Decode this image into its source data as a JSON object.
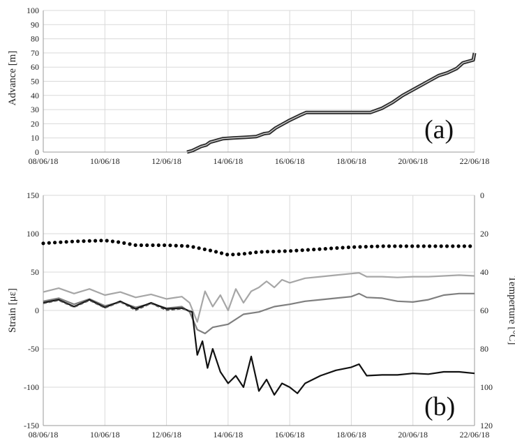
{
  "chart_data": [
    {
      "type": "line",
      "panel_label": "(a)",
      "ylabel": "Advance [m]",
      "xlim": [
        "2018-06-08",
        "2018-06-22"
      ],
      "ylim": [
        0,
        100
      ],
      "x_ticks": [
        "08/06/18",
        "10/06/18",
        "12/06/18",
        "14/06/18",
        "16/06/18",
        "18/06/18",
        "20/06/18",
        "22/06/18"
      ],
      "y_ticks": [
        "0",
        "10",
        "20",
        "30",
        "40",
        "50",
        "60",
        "70",
        "80",
        "90",
        "100"
      ],
      "grid": true,
      "colors": {
        "series": "#2b2b2b",
        "grid": "#d9d9d9"
      },
      "series": [
        {
          "x": [
            "2018-06-12 16:00",
            "2018-06-12 20:00",
            "2018-06-13 03:00",
            "2018-06-13 07:00",
            "2018-06-13 10:00",
            "2018-06-13 14:00",
            "2018-06-13 20:00",
            "2018-06-14 04:00",
            "2018-06-14 14:00",
            "2018-06-14 22:00",
            "2018-06-15 04:00",
            "2018-06-15 08:00",
            "2018-06-15 13:00",
            "2018-06-15 23:00",
            "2018-06-16 08:00",
            "2018-06-16 13:00",
            "2018-06-17 12:00",
            "2018-06-18 10:00",
            "2018-06-18 15:00",
            "2018-06-19 00:00",
            "2018-06-19 08:00",
            "2018-06-19 16:00",
            "2018-06-20 00:00",
            "2018-06-20 06:00",
            "2018-06-20 12:00",
            "2018-06-20 20:00",
            "2018-06-21 03:00",
            "2018-06-21 10:00",
            "2018-06-21 15:00",
            "2018-06-21 23:00",
            "2018-06-22 00:00"
          ],
          "y": [
            0,
            1,
            4,
            5,
            7,
            8,
            9.5,
            10,
            10.5,
            11,
            13,
            13.5,
            17,
            22,
            26,
            28,
            28,
            28,
            28,
            31,
            35,
            40,
            44,
            47,
            50,
            54,
            56,
            59,
            63,
            65,
            70
          ]
        }
      ]
    },
    {
      "type": "line",
      "panel_label": "(b)",
      "ylabel": "Strain [με]",
      "y2label": "Temperture [°C]",
      "xlim": [
        "2018-06-08",
        "2018-06-22"
      ],
      "ylim": [
        -150,
        150
      ],
      "y2lim": [
        0,
        120
      ],
      "y2_inverted": true,
      "x_ticks": [
        "08/06/18",
        "10/06/18",
        "12/06/18",
        "14/06/18",
        "16/06/18",
        "18/06/18",
        "20/06/18",
        "22/06/18"
      ],
      "y_ticks": [
        "-150",
        "-100",
        "-50",
        "0",
        "50",
        "100",
        "150"
      ],
      "y2_ticks": [
        "0",
        "20",
        "40",
        "60",
        "80",
        "100",
        "120"
      ],
      "grid": true,
      "colors": {
        "light": "#a6a6a6",
        "mid": "#7f7f7f",
        "black": "#111111",
        "temperature": "#000000",
        "grid": "#d9d9d9"
      },
      "series": [
        {
          "style": "light",
          "x": [
            "2018-06-08 00:00",
            "2018-06-08 12:00",
            "2018-06-09 00:00",
            "2018-06-09 12:00",
            "2018-06-10 00:00",
            "2018-06-10 12:00",
            "2018-06-11 00:00",
            "2018-06-11 12:00",
            "2018-06-12 00:00",
            "2018-06-12 12:00",
            "2018-06-12 18:00",
            "2018-06-13 00:00",
            "2018-06-13 06:00",
            "2018-06-13 12:00",
            "2018-06-13 18:00",
            "2018-06-14 00:00",
            "2018-06-14 06:00",
            "2018-06-14 12:00",
            "2018-06-14 18:00",
            "2018-06-15 00:00",
            "2018-06-15 06:00",
            "2018-06-15 12:00",
            "2018-06-15 18:00",
            "2018-06-16 00:00",
            "2018-06-16 12:00",
            "2018-06-17 00:00",
            "2018-06-17 12:00",
            "2018-06-18 00:00",
            "2018-06-18 06:00",
            "2018-06-18 12:00",
            "2018-06-19 00:00",
            "2018-06-19 12:00",
            "2018-06-20 00:00",
            "2018-06-20 12:00",
            "2018-06-21 00:00",
            "2018-06-21 12:00",
            "2018-06-22 00:00"
          ],
          "y": [
            24,
            29,
            22,
            28,
            20,
            24,
            17,
            21,
            15,
            18,
            10,
            -15,
            25,
            5,
            20,
            0,
            28,
            10,
            25,
            30,
            38,
            30,
            40,
            36,
            42,
            44,
            46,
            48,
            49,
            44,
            44,
            43,
            44,
            44,
            45,
            46,
            45
          ]
        },
        {
          "style": "mid",
          "x": [
            "2018-06-08 00:00",
            "2018-06-08 12:00",
            "2018-06-09 00:00",
            "2018-06-09 12:00",
            "2018-06-10 00:00",
            "2018-06-10 12:00",
            "2018-06-11 00:00",
            "2018-06-11 12:00",
            "2018-06-12 00:00",
            "2018-06-12 12:00",
            "2018-06-12 18:00",
            "2018-06-13 00:00",
            "2018-06-13 06:00",
            "2018-06-13 12:00",
            "2018-06-14 00:00",
            "2018-06-14 12:00",
            "2018-06-15 00:00",
            "2018-06-15 12:00",
            "2018-06-16 00:00",
            "2018-06-16 12:00",
            "2018-06-17 00:00",
            "2018-06-17 12:00",
            "2018-06-18 00:00",
            "2018-06-18 06:00",
            "2018-06-18 12:00",
            "2018-06-19 00:00",
            "2018-06-19 12:00",
            "2018-06-20 00:00",
            "2018-06-20 12:00",
            "2018-06-21 00:00",
            "2018-06-21 12:00",
            "2018-06-22 00:00"
          ],
          "y": [
            12,
            16,
            8,
            15,
            6,
            11,
            4,
            9,
            3,
            5,
            -2,
            -25,
            -30,
            -22,
            -18,
            -5,
            -2,
            5,
            8,
            12,
            14,
            16,
            18,
            22,
            17,
            16,
            12,
            11,
            14,
            20,
            22,
            22
          ]
        },
        {
          "style": "black",
          "x": [
            "2018-06-08 00:00",
            "2018-06-08 12:00",
            "2018-06-09 00:00",
            "2018-06-09 12:00",
            "2018-06-10 00:00",
            "2018-06-10 12:00",
            "2018-06-11 00:00",
            "2018-06-11 12:00",
            "2018-06-12 00:00",
            "2018-06-12 12:00",
            "2018-06-12 20:00",
            "2018-06-13 00:00",
            "2018-06-13 04:00",
            "2018-06-13 08:00",
            "2018-06-13 12:00",
            "2018-06-13 18:00",
            "2018-06-14 00:00",
            "2018-06-14 06:00",
            "2018-06-14 12:00",
            "2018-06-14 18:00",
            "2018-06-15 00:00",
            "2018-06-15 06:00",
            "2018-06-15 12:00",
            "2018-06-15 18:00",
            "2018-06-16 00:00",
            "2018-06-16 06:00",
            "2018-06-16 12:00",
            "2018-06-17 00:00",
            "2018-06-17 12:00",
            "2018-06-18 00:00",
            "2018-06-18 06:00",
            "2018-06-18 12:00",
            "2018-06-19 00:00",
            "2018-06-19 12:00",
            "2018-06-20 00:00",
            "2018-06-20 12:00",
            "2018-06-21 00:00",
            "2018-06-21 12:00",
            "2018-06-22 00:00"
          ],
          "y": [
            10,
            14,
            5,
            14,
            4,
            12,
            2,
            10,
            2,
            3,
            -2,
            -58,
            -40,
            -75,
            -50,
            -80,
            -95,
            -85,
            -100,
            -60,
            -105,
            -90,
            -110,
            -95,
            -100,
            -108,
            -95,
            -85,
            -78,
            -74,
            -70,
            -85,
            -84,
            -84,
            -82,
            -83,
            -80,
            -80,
            -82
          ]
        },
        {
          "style": "dashed",
          "x": [
            "2018-06-08 00:00",
            "2018-06-08 12:00",
            "2018-06-09 00:00",
            "2018-06-09 12:00",
            "2018-06-10 00:00",
            "2018-06-10 12:00",
            "2018-06-11 00:00",
            "2018-06-11 12:00",
            "2018-06-12 00:00",
            "2018-06-12 12:00",
            "2018-06-12 20:00"
          ],
          "y": [
            9,
            13,
            4,
            13,
            3,
            11,
            0,
            9,
            0,
            2,
            -1
          ]
        },
        {
          "style": "temperature",
          "axis": "y2",
          "x": [
            "2018-06-08 00:00",
            "2018-06-09 00:00",
            "2018-06-10 00:00",
            "2018-06-10 12:00",
            "2018-06-11 00:00",
            "2018-06-12 00:00",
            "2018-06-12 18:00",
            "2018-06-13 12:00",
            "2018-06-14 00:00",
            "2018-06-14 12:00",
            "2018-06-15 00:00",
            "2018-06-16 00:00",
            "2018-06-17 00:00",
            "2018-06-18 00:00",
            "2018-06-19 00:00",
            "2018-06-20 00:00",
            "2018-06-21 00:00",
            "2018-06-22 00:00"
          ],
          "y": [
            25,
            24,
            23.5,
            24.5,
            26,
            26,
            26.5,
            29,
            31,
            30.5,
            29.5,
            29,
            28,
            27,
            26.5,
            26.5,
            26.5,
            26.5
          ]
        }
      ]
    }
  ]
}
